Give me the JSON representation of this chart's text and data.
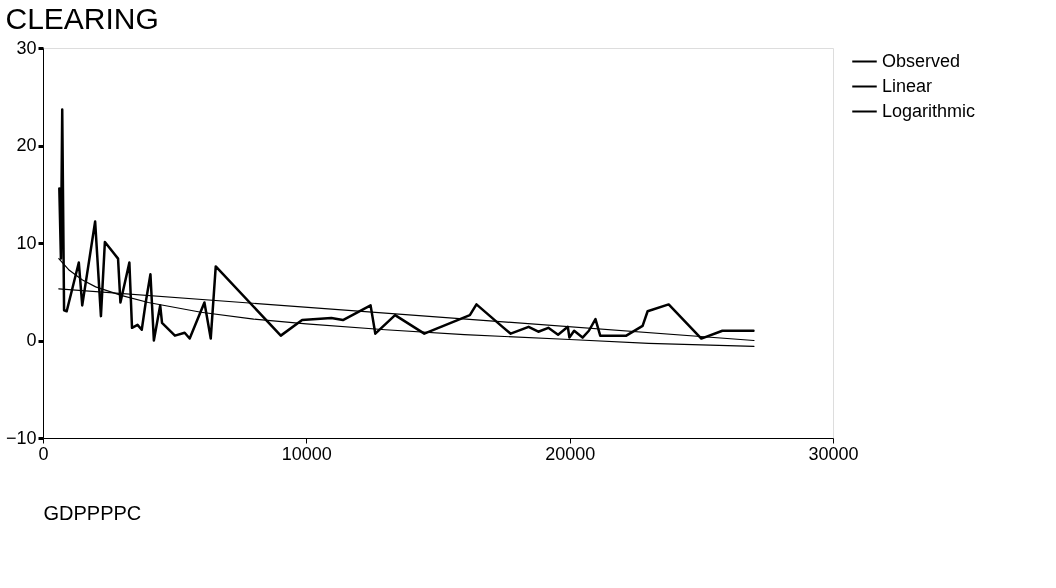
{
  "chart_data": {
    "type": "line",
    "title": "CLEARING",
    "xlabel": "GDPPPPC",
    "xlim": [
      0,
      30000
    ],
    "xticks": [
      0,
      10000,
      20000,
      30000
    ],
    "ylim": [
      -10,
      30
    ],
    "yticks": [
      -10,
      0,
      10,
      20,
      30
    ],
    "grid": false,
    "legend": "right",
    "line_style": "solid",
    "series": [
      {
        "name": "Observed",
        "color": "#000000",
        "x": [
          620,
          680,
          730,
          800,
          900,
          1360,
          1490,
          1980,
          2200,
          2350,
          2850,
          2940,
          3280,
          3380,
          3590,
          3750,
          3900,
          4080,
          4210,
          4450,
          4520,
          5010,
          5380,
          5570,
          6130,
          6370,
          6560,
          9030,
          9840,
          10950,
          11390,
          12440,
          12620,
          13370,
          14480,
          16210,
          16460,
          17450,
          17760,
          18440,
          18810,
          19190,
          19560,
          19930,
          19990,
          20170,
          20490,
          20730,
          20980,
          21160,
          21540,
          22150,
          22770,
          22960,
          23760,
          25000,
          25800,
          26980
        ],
        "values": [
          15.6,
          8.4,
          23.7,
          3.1,
          3.0,
          8.0,
          3.6,
          12.2,
          2.5,
          10.1,
          8.4,
          3.9,
          8.0,
          1.3,
          1.6,
          1.1,
          3.9,
          6.8,
          0.0,
          3.6,
          1.8,
          0.5,
          0.8,
          0.2,
          3.9,
          0.2,
          7.6,
          0.5,
          2.1,
          2.3,
          2.1,
          3.6,
          0.7,
          2.6,
          0.7,
          2.6,
          3.7,
          1.4,
          0.7,
          1.4,
          0.9,
          1.3,
          0.6,
          1.4,
          0.3,
          1.0,
          0.3,
          1.0,
          2.2,
          0.5,
          0.5,
          0.5,
          1.5,
          3.0,
          3.7,
          0.2,
          1.0,
          1.0
        ]
      },
      {
        "name": "Linear",
        "color": "#000000",
        "x": [
          600,
          27000
        ],
        "values": [
          5.3,
          0.0
        ]
      },
      {
        "name": "Logarithmic",
        "color": "#000000",
        "x": [
          600,
          1000,
          1500,
          2000,
          3000,
          4000,
          6000,
          8000,
          10000,
          13000,
          16000,
          20000,
          23000,
          27000
        ],
        "values": [
          8.4,
          7.2,
          6.2,
          5.5,
          4.6,
          3.9,
          2.9,
          2.2,
          1.7,
          1.1,
          0.6,
          0.1,
          -0.3,
          -0.6
        ]
      }
    ]
  }
}
